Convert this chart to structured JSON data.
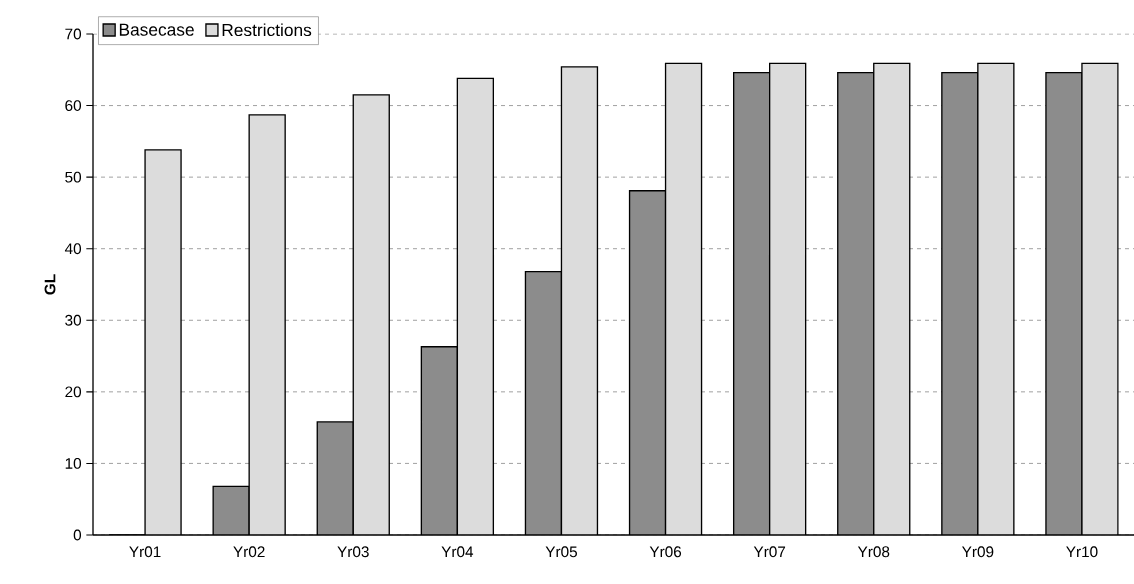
{
  "chart_data": {
    "type": "bar",
    "ylabel": "GL",
    "categories": [
      "Yr01",
      "Yr02",
      "Yr03",
      "Yr04",
      "Yr05",
      "Yr06",
      "Yr07",
      "Yr08",
      "Yr09",
      "Yr10"
    ],
    "series": [
      {
        "name": "Basecase",
        "color": "#8c8c8c",
        "values": [
          0,
          6.8,
          15.8,
          26.3,
          36.8,
          48.1,
          64.6,
          64.6,
          64.6,
          64.6
        ]
      },
      {
        "name": "Restrictions",
        "color": "#dcdcdc",
        "values": [
          53.8,
          58.7,
          61.5,
          63.8,
          65.4,
          65.9,
          65.9,
          65.9,
          65.9,
          65.9
        ]
      }
    ],
    "ylim": [
      0,
      70
    ],
    "yticks": [
      0,
      10,
      20,
      30,
      40,
      50,
      60,
      70
    ],
    "grid": "y",
    "legend": "top left"
  }
}
